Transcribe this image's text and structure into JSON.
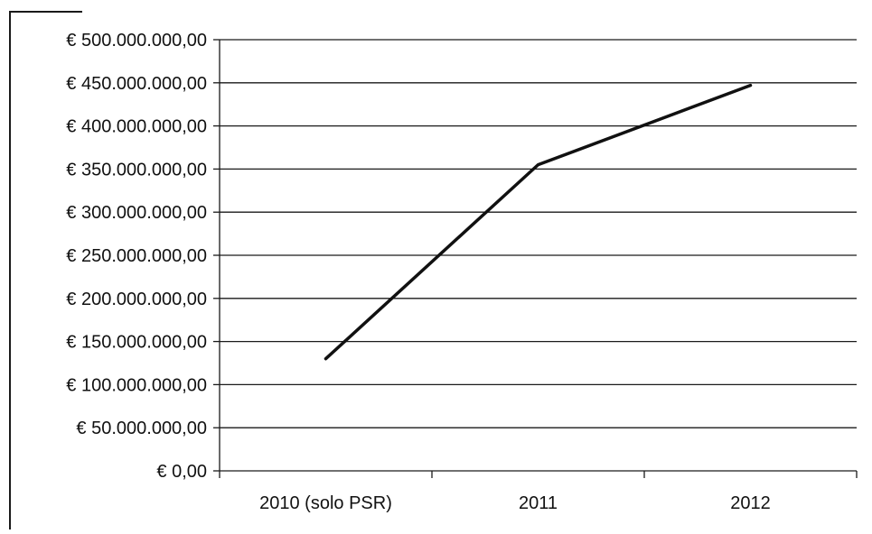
{
  "chart_data": {
    "type": "line",
    "title": "",
    "xlabel": "",
    "ylabel": "",
    "categories": [
      "2010 (solo PSR)",
      "2011",
      "2012"
    ],
    "series": [
      {
        "values": [
          130000000,
          355000000,
          447000000
        ]
      }
    ],
    "ylim": [
      0,
      500000000
    ],
    "y_ticks": [
      {
        "value": 0,
        "label": "€ 0,00"
      },
      {
        "value": 50000000,
        "label": "€ 50.000.000,00"
      },
      {
        "value": 100000000,
        "label": "€ 100.000.000,00"
      },
      {
        "value": 150000000,
        "label": "€ 150.000.000,00"
      },
      {
        "value": 200000000,
        "label": "€ 200.000.000,00"
      },
      {
        "value": 250000000,
        "label": "€ 250.000.000,00"
      },
      {
        "value": 300000000,
        "label": "€ 300.000.000,00"
      },
      {
        "value": 350000000,
        "label": "€ 350.000.000,00"
      },
      {
        "value": 400000000,
        "label": "€ 400.000.000,00"
      },
      {
        "value": 450000000,
        "label": "€ 450.000.000,00"
      },
      {
        "value": 500000000,
        "label": "€ 500.000.000,00"
      }
    ],
    "grid": true,
    "legend": "none",
    "colors": {
      "line": "#111111",
      "grid": "#1a1a1a",
      "axis": "#1a1a1a",
      "text": "#111111",
      "background": "#ffffff"
    }
  }
}
